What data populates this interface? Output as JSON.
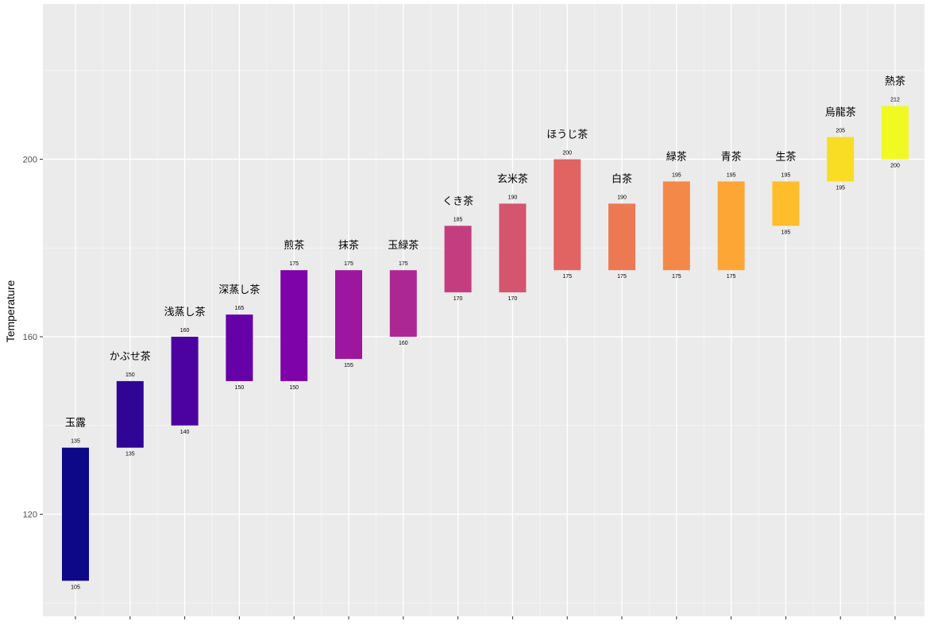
{
  "chart_data": {
    "type": "bar",
    "subtype": "floating-range",
    "ylabel": "Temperature",
    "ylim": [
      97,
      235
    ],
    "yticks": [
      "120",
      "160",
      "200"
    ],
    "grid": true,
    "background": "#ebebeb",
    "categories": [
      "玉露",
      "かぶせ茶",
      "浅蒸し茶",
      "深蒸し茶",
      "煎茶",
      "抹茶",
      "玉緑茶",
      "くき茶",
      "玄米茶",
      "ほうじ茶",
      "白茶",
      "緑茶",
      "青茶",
      "生茶",
      "烏龍茶",
      "熱茶"
    ],
    "low": [
      105,
      135,
      140,
      150,
      150,
      155,
      160,
      170,
      170,
      175,
      175,
      175,
      175,
      185,
      195,
      200
    ],
    "high": [
      135,
      150,
      160,
      165,
      175,
      175,
      175,
      185,
      190,
      200,
      190,
      195,
      195,
      195,
      205,
      212
    ],
    "low_labels": [
      "105",
      "135",
      "140",
      "150",
      "150",
      "155",
      "160",
      "170",
      "170",
      "175",
      "175",
      "175",
      "175",
      "185",
      "195",
      "200"
    ],
    "high_labels": [
      "135",
      "150",
      "160",
      "165",
      "175",
      "175",
      "175",
      "185",
      "190",
      "200",
      "190",
      "195",
      "195",
      "195",
      "205",
      "212"
    ],
    "colors": [
      "#0d0887",
      "#2f0596",
      "#4c02a1",
      "#6600a7",
      "#7e03a8",
      "#9c179e",
      "#ad2793",
      "#c43e7f",
      "#d5546e",
      "#e16462",
      "#ed7953",
      "#f48849",
      "#fca636",
      "#febd2a",
      "#f9dc24",
      "#f0f921"
    ]
  }
}
